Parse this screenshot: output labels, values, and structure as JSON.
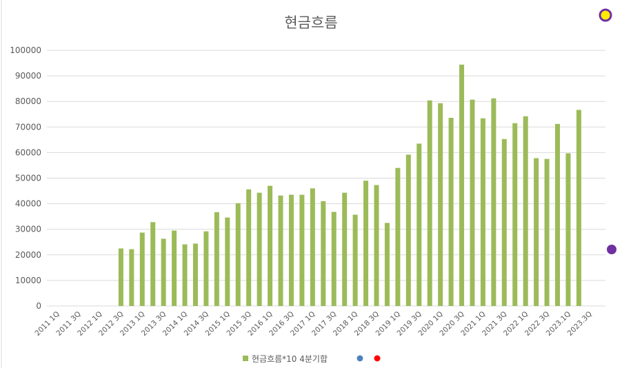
{
  "chart_data": {
    "type": "bar",
    "title": "현금흐름",
    "categories": [
      "2011 1Q",
      null,
      "2011 3Q",
      null,
      "2012 1Q",
      null,
      "2012 3Q",
      null,
      "2013 1Q",
      null,
      "2013 3Q",
      null,
      "2014 1Q",
      null,
      "2014 3Q",
      null,
      "2015 1Q",
      null,
      "2015 3Q",
      null,
      "2016 1Q",
      null,
      "2016 3Q",
      null,
      "2017 1Q",
      null,
      "2017 3Q",
      null,
      "2018 1Q",
      null,
      "2018 3Q",
      null,
      "2019 1Q",
      null,
      "2019 3Q",
      null,
      "2020 1Q",
      null,
      "2020 3Q",
      null,
      "2021 1Q",
      null,
      "2021 3Q",
      null,
      "2022 1Q",
      null,
      "2022 3Q",
      null,
      "2023.1Q",
      null,
      "2023.3Q",
      null
    ],
    "series": [
      {
        "name": "현금흐름*10 4분기합",
        "color": "#9bbb59",
        "values": [
          null,
          null,
          null,
          null,
          null,
          null,
          22500,
          22200,
          28700,
          32800,
          26300,
          29500,
          24100,
          24400,
          29200,
          36700,
          34600,
          40200,
          45600,
          44300,
          47000,
          43200,
          43500,
          43500,
          46000,
          41000,
          36800,
          44300,
          35700,
          49000,
          47300,
          32500,
          54000,
          59200,
          63500,
          80400,
          79300,
          73600,
          94400,
          80700,
          73400,
          81200,
          65300,
          71500,
          74200,
          57800,
          57500,
          71200,
          59700,
          76700,
          null,
          null
        ]
      }
    ],
    "ylim": [
      0,
      100000
    ],
    "yticks": [
      0,
      10000,
      20000,
      30000,
      40000,
      50000,
      60000,
      70000,
      80000,
      90000,
      100000
    ],
    "grid": true,
    "legend": "bottom"
  }
}
